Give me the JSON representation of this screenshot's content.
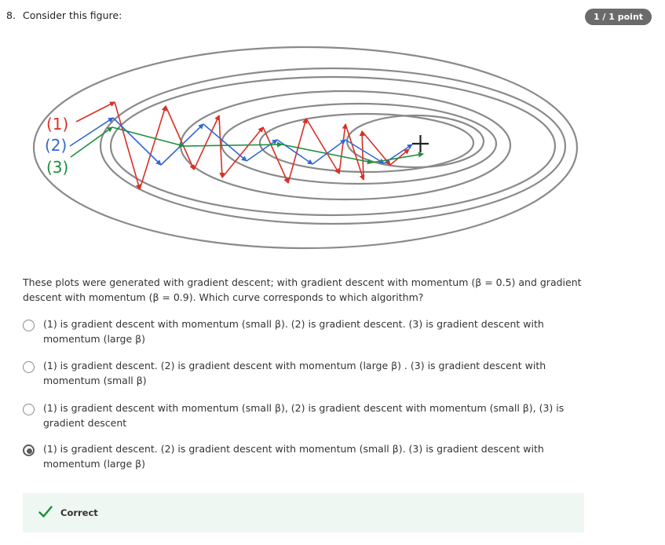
{
  "question": {
    "number": "8.",
    "text": "Consider this figure:",
    "points": "1 / 1 point"
  },
  "figure": {
    "labels": [
      "(1)",
      "(2)",
      "(3)"
    ],
    "colors": {
      "curve1": "#d93025",
      "curve2": "#3367d6",
      "curve3": "#1e8e3e",
      "contours": "#8a8a8a"
    }
  },
  "prompt": "These plots were generated with gradient descent; with gradient descent with momentum (β = 0.5) and gradient descent with momentum (β = 0.9). Which curve corresponds to which algorithm?",
  "options": [
    {
      "text": "(1) is gradient descent with momentum (small β). (2) is gradient descent. (3) is gradient descent with momentum (large β)",
      "selected": false
    },
    {
      "text": "(1) is gradient descent. (2) is gradient descent with momentum (large β) . (3) is gradient descent with momentum (small β)",
      "selected": false
    },
    {
      "text": "(1) is gradient descent with momentum (small β), (2) is gradient descent with momentum (small β), (3) is gradient descent",
      "selected": false
    },
    {
      "text": "(1) is gradient descent. (2) is gradient descent with momentum (small β). (3) is gradient descent with momentum (large β)",
      "selected": true
    }
  ],
  "feedback": {
    "label": "Correct",
    "icon": "check-icon",
    "color": "#1e8e3e"
  }
}
